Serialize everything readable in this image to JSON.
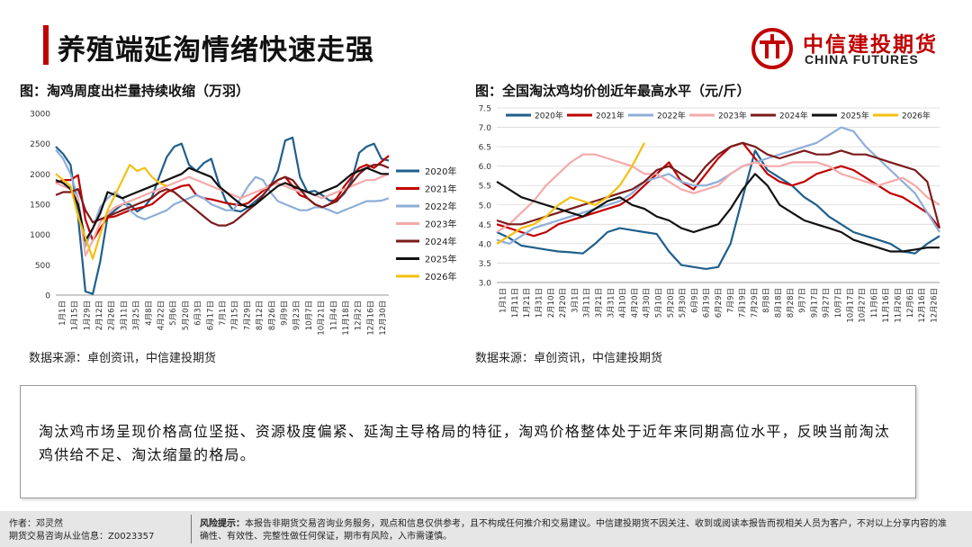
{
  "page": {
    "title": "养殖端延淘情绪快速走强",
    "logo_cn": "中信建投期货",
    "logo_en": "CHINA FUTURES",
    "summary": "淘汰鸡市场呈现价格高位坚挺、资源极度偏紧、延淘主导格局的特征，淘鸡价格整体处于近年来同期高位水平，反映当前淘汰鸡供给不足、淘汰缩量的格局。",
    "footer": {
      "author": "作者：邓灵然",
      "license": "期货交易咨询从业信息：Z0023357",
      "risk_label": "风险提示：",
      "risk_text": "本报告非期货交易咨询业务服务，观点和信息仅供参考，且不构成任何推介和交易建议。中信建投期货不因关注、收到或阅读本报告而视相关人员为客户，不对以上分享内容的准确性、有效性、完整性做任何保证，期市有风险，入市需谨慎。"
    },
    "colors": {
      "accent": "#c00000"
    }
  },
  "chart_data": [
    {
      "type": "line",
      "title": "图：淘鸡周度出栏量持续收缩（万羽）",
      "source": "数据来源：卓创资讯，中信建投期货",
      "ylim": [
        0,
        3000
      ],
      "yticks": [
        "0",
        "500",
        "1000",
        "1500",
        "2000",
        "2500",
        "3000"
      ],
      "xticks": [
        "1月1日",
        "1月15日",
        "1月29日",
        "2月12日",
        "2月26日",
        "3月11日",
        "3月25日",
        "4月8日",
        "4月22日",
        "5月6日",
        "5月20日",
        "6月3日",
        "6月17日",
        "7月1日",
        "7月15日",
        "7月29日",
        "8月12日",
        "8月26日",
        "9月9日",
        "9月23日",
        "10月7日",
        "10月21日",
        "11月4日",
        "11月18日",
        "12月2日",
        "12月16日",
        "12月30日"
      ],
      "legend_position": "right",
      "series": [
        {
          "name": "2020年",
          "color": "#1f5f8b",
          "values": [
            2450,
            2330,
            2150,
            1300,
            60,
            20,
            550,
            1300,
            1400,
            1500,
            1500,
            1380,
            1460,
            1620,
            1960,
            2280,
            2450,
            2500,
            2150,
            2050,
            2180,
            2250,
            1850,
            1550,
            1400,
            1380,
            1450,
            1550,
            1650,
            1800,
            2050,
            2550,
            2600,
            1950,
            1700,
            1720,
            1650,
            1560,
            1560,
            1680,
            1900,
            2350,
            2450,
            2500,
            2250,
            2220
          ]
        },
        {
          "name": "2021年",
          "color": "#c00000",
          "values": [
            1850,
            1900,
            1900,
            1980,
            1250,
            900,
            1100,
            1280,
            1300,
            1350,
            1400,
            1430,
            1460,
            1500,
            1600,
            1700,
            1750,
            1800,
            1820,
            1650,
            1600,
            1580,
            1550,
            1520,
            1500,
            1480,
            1520,
            1620,
            1720,
            1820,
            1900,
            1950,
            1800,
            1650,
            1600,
            1500,
            1450,
            1500,
            1600,
            1800,
            1950,
            2100,
            2150,
            2100,
            2200,
            2300
          ]
        },
        {
          "name": "2022年",
          "color": "#8eaed8",
          "values": [
            2400,
            2250,
            2000,
            1600,
            800,
            1100,
            1450,
            1600,
            1700,
            1600,
            1400,
            1300,
            1250,
            1300,
            1350,
            1400,
            1500,
            1550,
            1600,
            1650,
            1600,
            1500,
            1450,
            1400,
            1400,
            1600,
            1800,
            1950,
            1900,
            1700,
            1550,
            1500,
            1450,
            1400,
            1400,
            1450,
            1450,
            1400,
            1350,
            1400,
            1450,
            1500,
            1550,
            1550,
            1560,
            1600
          ]
        },
        {
          "name": "2023年",
          "color": "#f4aaaa",
          "values": [
            1850,
            1800,
            1750,
            1600,
            650,
            900,
            1200,
            1350,
            1450,
            1500,
            1550,
            1600,
            1650,
            1700,
            1750,
            1800,
            1850,
            1900,
            1950,
            1900,
            1850,
            1800,
            1750,
            1700,
            1650,
            1600,
            1650,
            1700,
            1750,
            1800,
            1850,
            1800,
            1750,
            1700,
            1700,
            1650,
            1600,
            1650,
            1700,
            1750,
            1800,
            1850,
            1900,
            1900,
            1950,
            2000
          ]
        },
        {
          "name": "2024年",
          "color": "#7b1b1b",
          "values": [
            1650,
            1700,
            1700,
            1750,
            1400,
            1200,
            1250,
            1300,
            1350,
            1400,
            1450,
            1500,
            1550,
            1600,
            1700,
            1750,
            1700,
            1600,
            1500,
            1400,
            1300,
            1200,
            1150,
            1150,
            1200,
            1300,
            1400,
            1500,
            1650,
            1800,
            1900,
            1950,
            1900,
            1750,
            1600,
            1500,
            1450,
            1500,
            1550,
            1700,
            1850,
            2000,
            2100,
            2150,
            2150,
            2100
          ]
        },
        {
          "name": "2025年",
          "color": "#111111",
          "values": [
            1900,
            1850,
            1750,
            1500,
            900,
            1100,
            1350,
            1700,
            1650,
            1600,
            1650,
            1700,
            1750,
            1800,
            1850,
            1900,
            1950,
            2000,
            2100,
            2050,
            2000,
            1950,
            1800,
            1700,
            1600,
            1500,
            1450,
            1500,
            1600,
            1700,
            1800,
            1850,
            1800,
            1750,
            1700,
            1650,
            1700,
            1750,
            1800,
            1900,
            2000,
            2050,
            2100,
            2050,
            2000,
            2000
          ]
        },
        {
          "name": "2026年",
          "color": "#f2c012",
          "values": [
            2000,
            1900,
            1800,
            1300,
            950,
            600,
            1000,
            1400,
            1650,
            1900,
            2150,
            2050,
            2100,
            1950,
            1850,
            1800
          ]
        }
      ]
    },
    {
      "type": "line",
      "title": "图：全国淘汰鸡均价创近年最高水平（元/斤）",
      "source": "数据来源：卓创资讯，中信建投期货",
      "ylim": [
        3.0,
        7.5
      ],
      "yticks": [
        "3.0",
        "3.5",
        "4.0",
        "4.5",
        "5.0",
        "5.5",
        "6.0",
        "6.5",
        "7.0",
        "7.5"
      ],
      "xticks": [
        "1月1日",
        "1月11日",
        "1月21日",
        "1月31日",
        "2月10日",
        "2月20日",
        "3月1日",
        "3月11日",
        "3月21日",
        "3月31日",
        "4月10日",
        "4月20日",
        "4月30日",
        "5月10日",
        "5月20日",
        "5月30日",
        "6月9日",
        "6月19日",
        "6月29日",
        "7月9日",
        "7月19日",
        "7月29日",
        "8月8日",
        "8月18日",
        "8月28日",
        "9月7日",
        "9月17日",
        "9月27日",
        "10月7日",
        "10月17日",
        "10月27日",
        "11月6日",
        "11月16日",
        "11月26日",
        "12月6日",
        "12月16日",
        "12月26日"
      ],
      "legend_position": "top",
      "series": [
        {
          "name": "2020年",
          "color": "#1f5f8b",
          "values": [
            4.3,
            4.15,
            3.95,
            3.9,
            3.85,
            3.8,
            3.78,
            3.75,
            4.0,
            4.3,
            4.4,
            4.35,
            4.3,
            4.25,
            3.8,
            3.45,
            3.4,
            3.35,
            3.4,
            4.0,
            5.2,
            6.4,
            5.9,
            5.7,
            5.5,
            5.2,
            5.0,
            4.7,
            4.5,
            4.3,
            4.2,
            4.1,
            4.0,
            3.8,
            3.75,
            4.0,
            4.2
          ]
        },
        {
          "name": "2021年",
          "color": "#c00000",
          "values": [
            4.5,
            4.4,
            4.3,
            4.2,
            4.3,
            4.5,
            4.6,
            4.7,
            4.8,
            4.9,
            5.0,
            5.2,
            5.5,
            5.8,
            6.1,
            5.6,
            5.4,
            5.8,
            6.2,
            6.5,
            6.6,
            6.2,
            5.8,
            5.6,
            5.5,
            5.6,
            5.8,
            5.9,
            6.0,
            5.9,
            5.7,
            5.5,
            5.3,
            5.2,
            5.0,
            4.8,
            4.4
          ]
        },
        {
          "name": "2022年",
          "color": "#8eaed8",
          "values": [
            4.1,
            4.0,
            4.2,
            4.4,
            4.5,
            4.6,
            4.7,
            4.8,
            4.9,
            5.0,
            5.1,
            5.3,
            5.6,
            5.7,
            5.8,
            5.6,
            5.5,
            5.5,
            5.6,
            5.8,
            6.0,
            6.1,
            6.2,
            6.3,
            6.4,
            6.5,
            6.6,
            6.8,
            7.0,
            6.9,
            6.5,
            6.2,
            5.9,
            5.6,
            5.3,
            4.8,
            4.3
          ]
        },
        {
          "name": "2023年",
          "color": "#f4aaaa",
          "values": [
            4.3,
            4.5,
            4.8,
            5.1,
            5.5,
            5.8,
            6.1,
            6.3,
            6.3,
            6.2,
            6.1,
            6.0,
            5.8,
            5.8,
            5.6,
            5.4,
            5.3,
            5.4,
            5.5,
            5.8,
            6.0,
            6.1,
            6.0,
            6.0,
            6.1,
            6.1,
            6.1,
            6.0,
            5.8,
            5.7,
            5.6,
            5.5,
            5.6,
            5.7,
            5.5,
            5.2,
            5.0
          ]
        },
        {
          "name": "2024年",
          "color": "#7b1b1b",
          "values": [
            4.6,
            4.5,
            4.5,
            4.6,
            4.7,
            4.8,
            4.9,
            5.0,
            5.1,
            5.2,
            5.3,
            5.4,
            5.6,
            5.9,
            6.0,
            5.8,
            5.6,
            6.0,
            6.3,
            6.5,
            6.6,
            6.5,
            6.3,
            6.2,
            6.3,
            6.4,
            6.3,
            6.3,
            6.4,
            6.3,
            6.3,
            6.2,
            6.1,
            6.0,
            5.9,
            5.6,
            4.4
          ]
        },
        {
          "name": "2025年",
          "color": "#111111",
          "values": [
            5.6,
            5.4,
            5.2,
            5.1,
            5.0,
            4.9,
            4.8,
            4.7,
            4.9,
            5.1,
            5.2,
            5.0,
            4.9,
            4.7,
            4.6,
            4.4,
            4.3,
            4.4,
            4.5,
            4.9,
            5.4,
            5.8,
            5.5,
            5.0,
            4.8,
            4.6,
            4.5,
            4.4,
            4.3,
            4.1,
            4.0,
            3.9,
            3.8,
            3.8,
            3.85,
            3.9,
            3.9
          ]
        },
        {
          "name": "2026年",
          "color": "#f2c012",
          "values": [
            4.0,
            4.2,
            4.4,
            4.5,
            4.7,
            5.0,
            5.2,
            5.1,
            5.0,
            5.2,
            5.5,
            6.0,
            6.6
          ]
        }
      ]
    }
  ]
}
